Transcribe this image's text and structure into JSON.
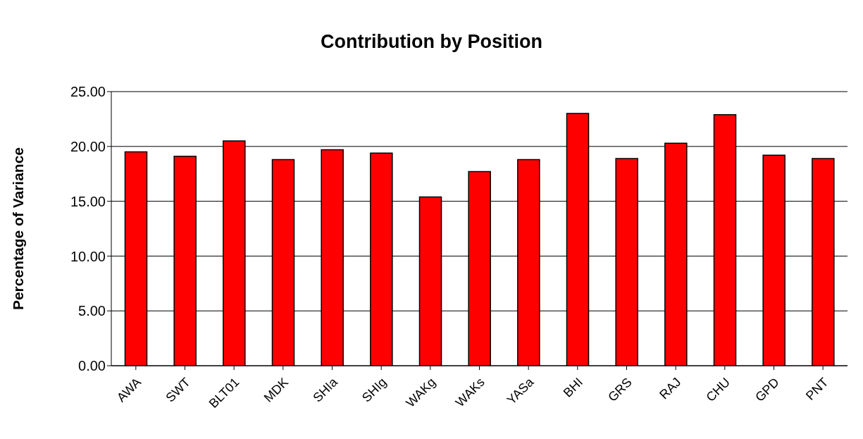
{
  "chart_data": {
    "type": "bar",
    "title": "Contribution by Position",
    "ylabel": "Percentage of Variance",
    "categories": [
      "AWA",
      "SWT",
      "BLT01",
      "MDK",
      "SHIa",
      "SHIg",
      "WAKg",
      "WAKs",
      "YASa",
      "BHI",
      "GRS",
      "RAJ",
      "CHU",
      "GPD",
      "PNT"
    ],
    "values": [
      19.5,
      19.1,
      20.5,
      18.8,
      19.7,
      19.4,
      15.4,
      17.7,
      18.8,
      23.0,
      18.9,
      20.3,
      22.9,
      19.2,
      18.9
    ],
    "color": "#ff0000",
    "ylim": [
      0,
      25
    ],
    "yticks": [
      {
        "value": 0,
        "label": "0.00"
      },
      {
        "value": 5,
        "label": "5.00"
      },
      {
        "value": 10,
        "label": "10.00"
      },
      {
        "value": 15,
        "label": "15.00"
      },
      {
        "value": 20,
        "label": "20.00"
      },
      {
        "value": 25,
        "label": "25.00"
      }
    ],
    "grid": "y"
  }
}
